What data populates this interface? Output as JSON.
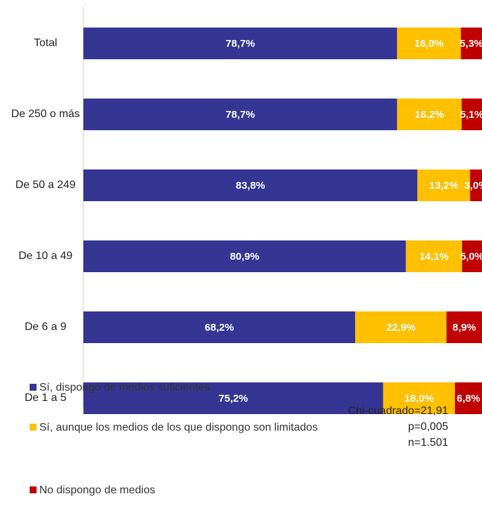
{
  "chart_data": {
    "type": "bar",
    "orientation": "horizontal",
    "stacked": true,
    "categories": [
      "Total",
      "De 250 o más",
      "De 50 a 249",
      "De 10 a 49",
      "De 6 a 9",
      "De 1 a 5"
    ],
    "series": [
      {
        "name": "Sí, dispongo de medios suficientes",
        "color": "#353594",
        "values": [
          78.7,
          78.7,
          83.8,
          80.9,
          68.2,
          75.2
        ],
        "value_labels": [
          "78,7%",
          "78,7%",
          "83,8%",
          "80,9%",
          "68,2%",
          "75,2%"
        ]
      },
      {
        "name": "Sí, aunque los medios de los que dispongo son limitados",
        "color": "#FFC000",
        "values": [
          16.0,
          16.2,
          13.2,
          14.1,
          22.9,
          18.0
        ],
        "value_labels": [
          "16,0%",
          "16,2%",
          "13,2%",
          "14,1%",
          "22,9%",
          "18,0%"
        ]
      },
      {
        "name": "No dispongo de medios",
        "color": "#C00000",
        "values": [
          5.3,
          5.1,
          3.0,
          5.0,
          8.9,
          6.8
        ],
        "value_labels": [
          "5,3%",
          "5,1%",
          "3,0%",
          "5,0%",
          "8,9%",
          "6,8%"
        ]
      }
    ],
    "annotations": [
      "Chi-cuadrado=21,91",
      "p=0,005",
      "n=1.501"
    ]
  }
}
